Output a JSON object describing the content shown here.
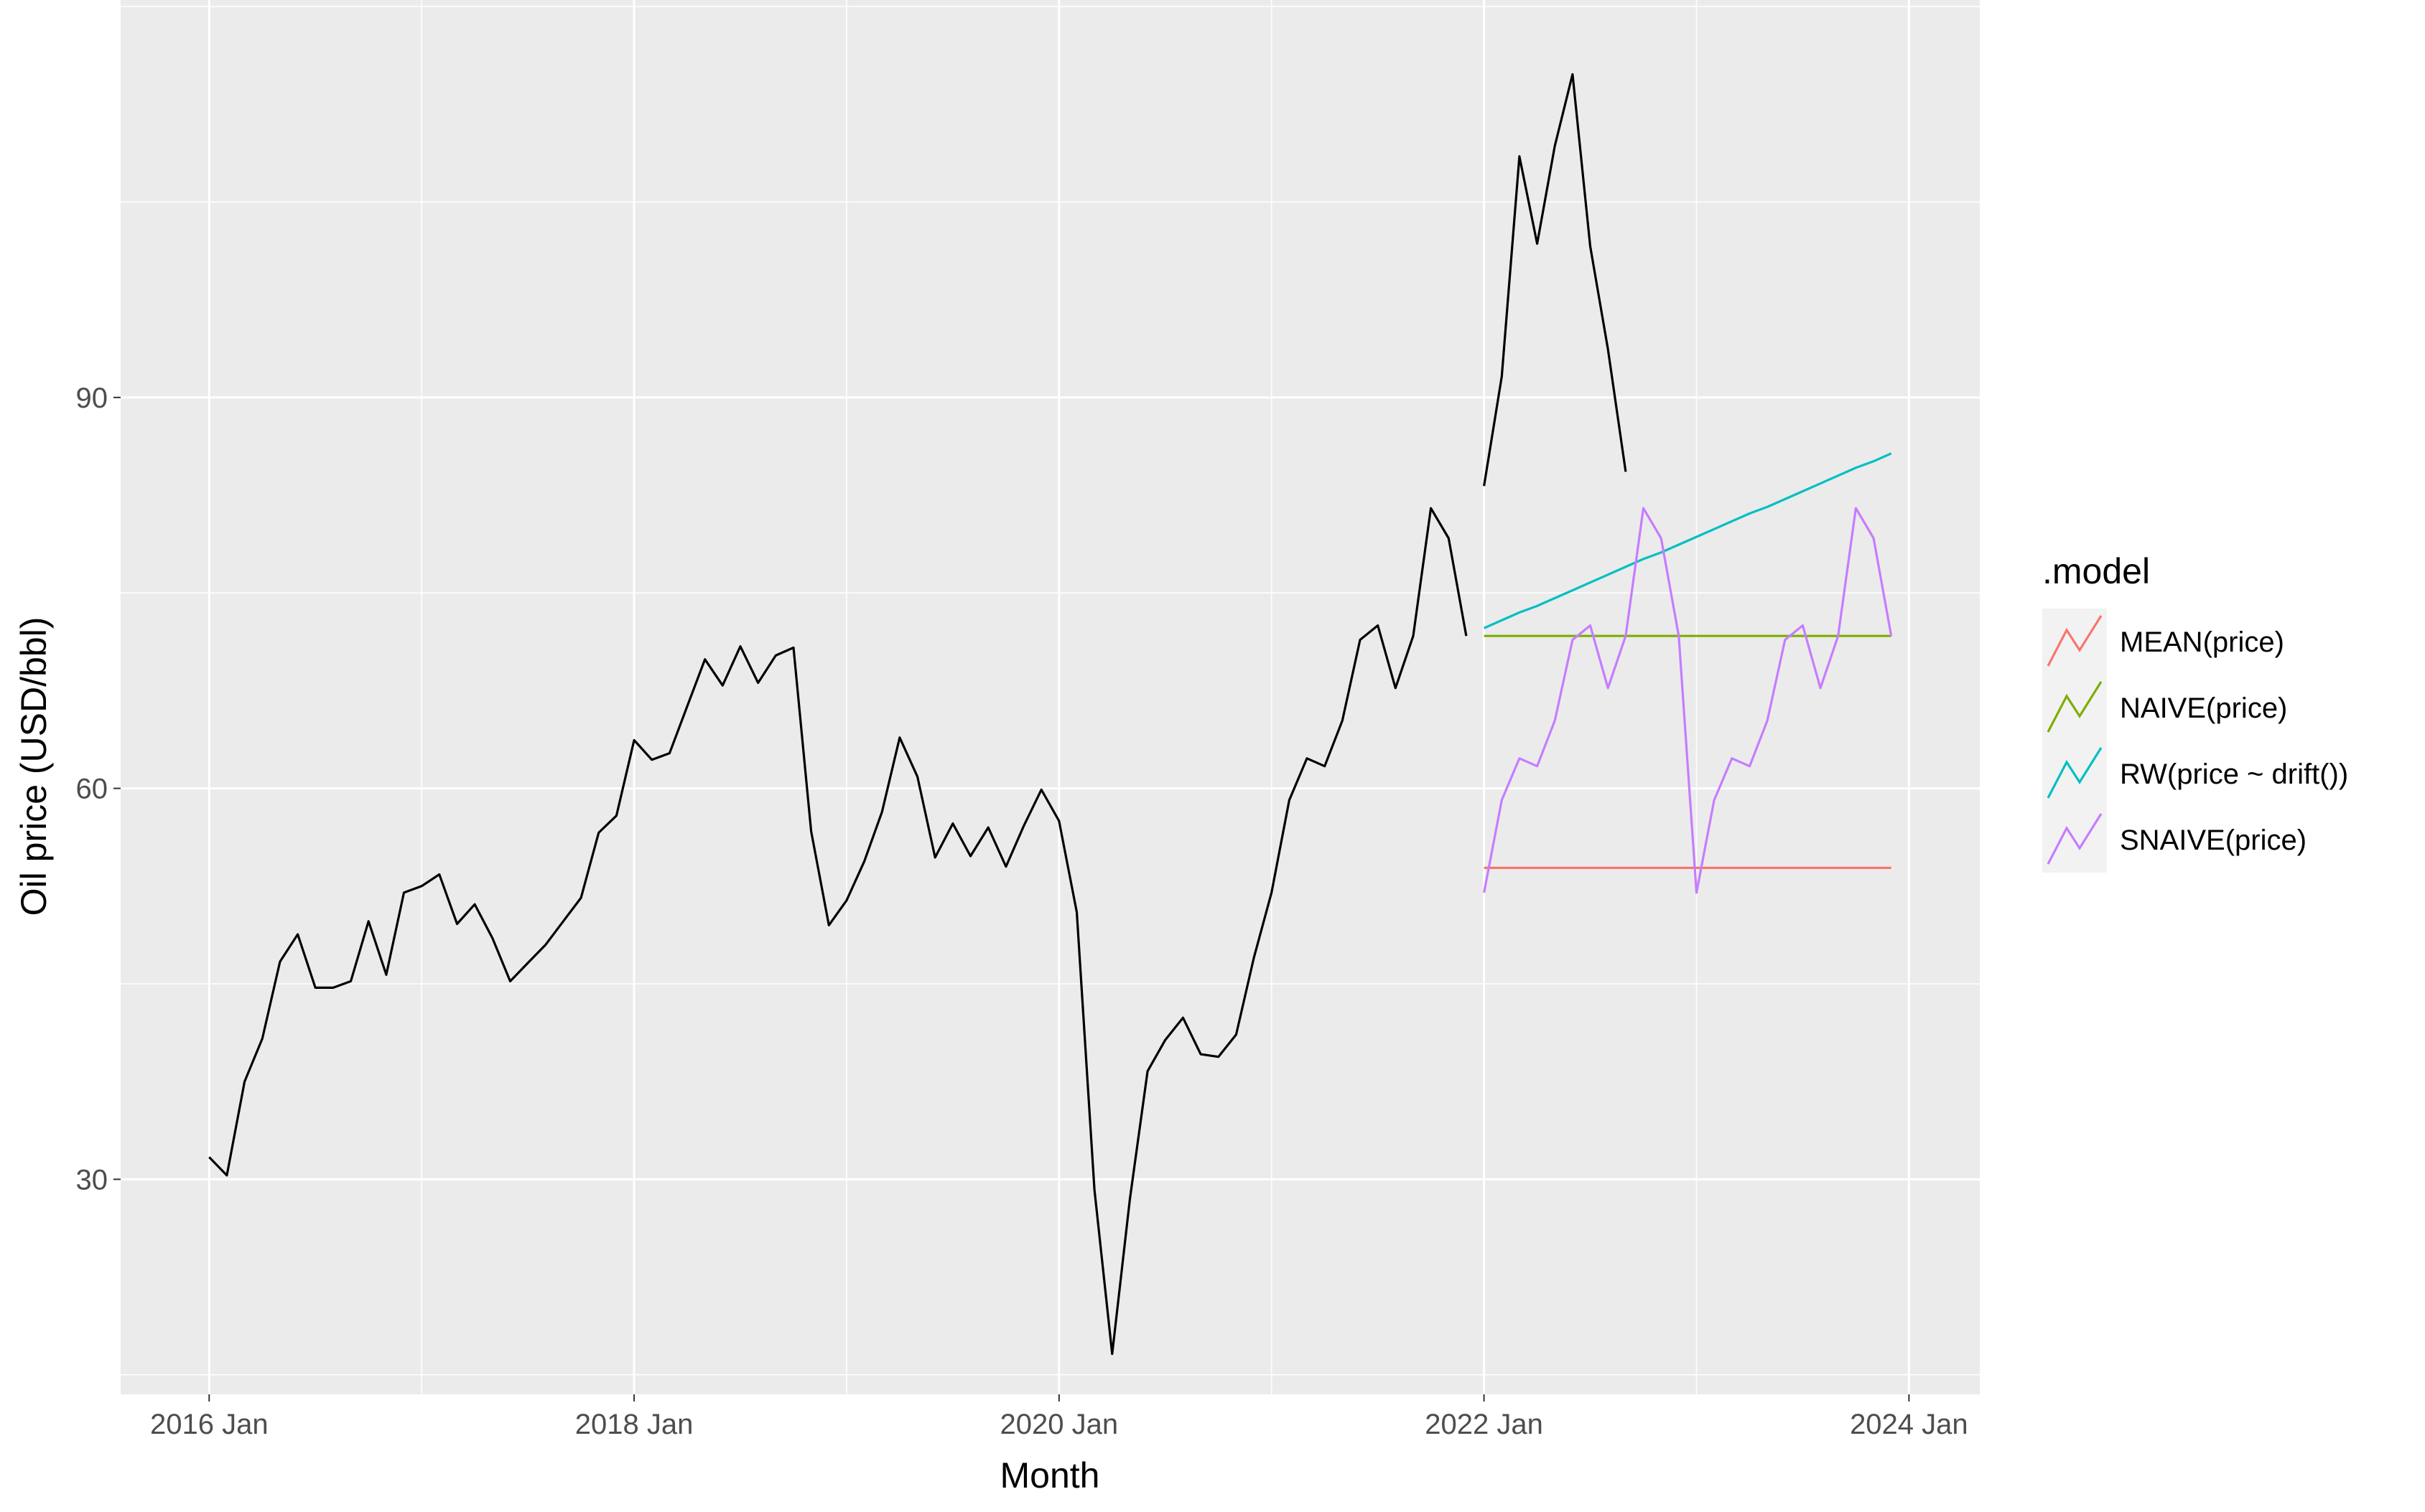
{
  "chart_data": {
    "type": "line",
    "xlabel": "Month",
    "ylabel": "Oil price (USD/bbl)",
    "x_ticks": [
      "2016 Jan",
      "2018 Jan",
      "2020 Jan",
      "2022 Jan",
      "2024 Jan"
    ],
    "y_ticks": [
      30,
      60,
      90
    ],
    "xlim": [
      "2015-08",
      "2024-05"
    ],
    "ylim": [
      13.5,
      120.5
    ],
    "grid": true,
    "legend": {
      "title": ".model",
      "position": "right",
      "entries": [
        "MEAN(price)",
        "NAIVE(price)",
        "RW(price ~ drift())",
        "SNAIVE(price)"
      ]
    },
    "series": [
      {
        "role": "history",
        "color": "#000000",
        "start": "2016-01",
        "values": [
          31.7,
          30.3,
          37.5,
          40.8,
          46.7,
          48.8,
          44.7,
          44.7,
          45.2,
          49.8,
          45.7,
          52.0,
          52.5,
          53.4,
          49.6,
          51.1,
          48.5,
          45.2,
          46.6,
          48.0,
          49.8,
          51.6,
          56.6,
          57.9,
          63.7,
          62.2,
          62.7,
          66.3,
          69.9,
          67.9,
          70.9,
          68.1,
          70.2,
          70.8,
          56.7,
          49.5,
          51.4,
          54.4,
          58.2,
          63.9,
          60.9,
          54.7,
          57.3,
          54.8,
          57.0,
          54.0,
          57.1,
          59.9,
          57.5,
          50.5,
          29.2,
          16.6,
          28.5,
          38.3,
          40.7,
          42.4,
          39.6,
          39.4,
          41.1,
          47.0,
          52.0,
          59.1,
          62.3,
          61.7,
          65.2,
          71.4,
          72.5,
          67.7,
          71.7,
          81.5,
          79.2,
          71.7
        ]
      },
      {
        "role": "actual",
        "color": "#000000",
        "start": "2022-01",
        "values": [
          83.2,
          91.6,
          108.5,
          101.8,
          109.3,
          114.8,
          101.6,
          93.7,
          84.3
        ]
      },
      {
        "role": "forecast",
        "name": "MEAN(price)",
        "color": "#F8766D",
        "start": "2022-01",
        "values": [
          53.9,
          53.9,
          53.9,
          53.9,
          53.9,
          53.9,
          53.9,
          53.9,
          53.9,
          53.9,
          53.9,
          53.9,
          53.9,
          53.9,
          53.9,
          53.9,
          53.9,
          53.9,
          53.9,
          53.9,
          53.9,
          53.9,
          53.9,
          53.9
        ]
      },
      {
        "role": "forecast",
        "name": "NAIVE(price)",
        "color": "#7CAE00",
        "start": "2022-01",
        "values": [
          71.7,
          71.7,
          71.7,
          71.7,
          71.7,
          71.7,
          71.7,
          71.7,
          71.7,
          71.7,
          71.7,
          71.7,
          71.7,
          71.7,
          71.7,
          71.7,
          71.7,
          71.7,
          71.7,
          71.7,
          71.7,
          71.7,
          71.7,
          71.7
        ]
      },
      {
        "role": "forecast",
        "name": "RW(price ~ drift())",
        "color": "#00BFC4",
        "start": "2022-01",
        "values": [
          72.3,
          72.9,
          73.5,
          74.0,
          74.6,
          75.2,
          75.8,
          76.4,
          77.0,
          77.6,
          78.1,
          78.7,
          79.3,
          79.9,
          80.5,
          81.1,
          81.6,
          82.2,
          82.8,
          83.4,
          84.0,
          84.6,
          85.1,
          85.7
        ]
      },
      {
        "role": "forecast",
        "name": "SNAIVE(price)",
        "color": "#C77CFF",
        "start": "2022-01",
        "values": [
          52.0,
          59.1,
          62.3,
          61.7,
          65.2,
          71.4,
          72.5,
          67.7,
          71.7,
          81.5,
          79.2,
          71.7,
          52.0,
          59.1,
          62.3,
          61.7,
          65.2,
          71.4,
          72.5,
          67.7,
          71.7,
          81.5,
          79.2,
          71.7
        ]
      }
    ]
  }
}
